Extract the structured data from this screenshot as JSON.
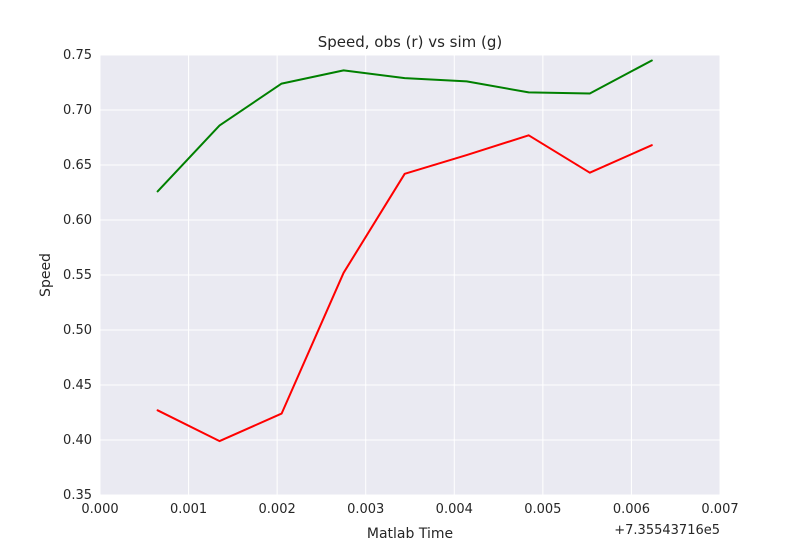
{
  "chart_data": {
    "type": "line",
    "title": "Speed, obs (r) vs sim (g)",
    "xlabel": "Matlab Time",
    "ylabel": "Speed",
    "offset_label": "+7.35543716e5",
    "xlim": [
      0.0,
      0.007
    ],
    "ylim": [
      0.35,
      0.75
    ],
    "x_ticks": [
      "0.000",
      "0.001",
      "0.002",
      "0.003",
      "0.004",
      "0.005",
      "0.006",
      "0.007"
    ],
    "y_ticks": [
      "0.35",
      "0.40",
      "0.45",
      "0.50",
      "0.55",
      "0.60",
      "0.65",
      "0.70",
      "0.75"
    ],
    "grid": true,
    "background": "#eaeaf2",
    "series": [
      {
        "color": "#ff0000",
        "x": [
          0.00065,
          0.00135,
          0.00205,
          0.00275,
          0.00344,
          0.00414,
          0.00484,
          0.00553,
          0.00623
        ],
        "y": [
          0.427,
          0.399,
          0.424,
          0.552,
          0.642,
          0.659,
          0.677,
          0.643,
          0.668
        ]
      },
      {
        "color": "#008000",
        "x": [
          0.00065,
          0.00135,
          0.00205,
          0.00275,
          0.00344,
          0.00414,
          0.00484,
          0.00553,
          0.00623
        ],
        "y": [
          0.626,
          0.686,
          0.724,
          0.736,
          0.729,
          0.726,
          0.716,
          0.715,
          0.745
        ]
      }
    ]
  }
}
